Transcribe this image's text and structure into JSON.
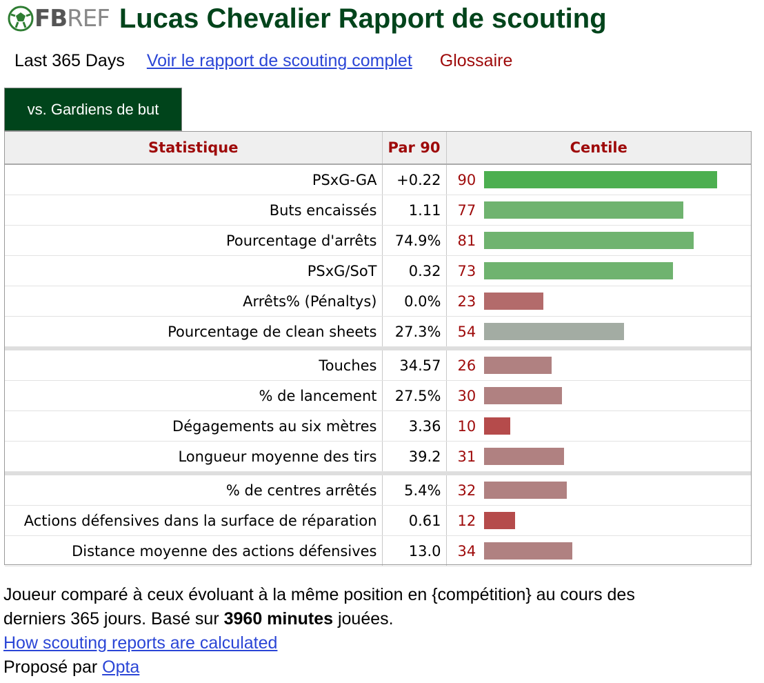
{
  "header": {
    "logo_bold": "FB",
    "logo_light": "REF",
    "title": "Lucas Chevalier Rapport de scouting"
  },
  "subnav": {
    "period": "Last 365 Days",
    "full_report_link": "Voir le rapport de scouting complet",
    "glossary": "Glossaire"
  },
  "tab": {
    "label": "vs. Gardiens de but"
  },
  "table": {
    "headers": [
      "Statistique",
      "Par 90",
      "Centile"
    ],
    "groups": [
      [
        {
          "stat": "PSxG-GA",
          "per90": "+0.22",
          "pct": 90
        },
        {
          "stat": "Buts encaissés",
          "per90": "1.11",
          "pct": 77
        },
        {
          "stat": "Pourcentage d'arrêts",
          "per90": "74.9%",
          "pct": 81
        },
        {
          "stat": "PSxG/SoT",
          "per90": "0.32",
          "pct": 73
        },
        {
          "stat": "Arrêts% (Pénaltys)",
          "per90": "0.0%",
          "pct": 23
        },
        {
          "stat": "Pourcentage de clean sheets",
          "per90": "27.3%",
          "pct": 54
        }
      ],
      [
        {
          "stat": "Touches",
          "per90": "34.57",
          "pct": 26
        },
        {
          "stat": "% de lancement",
          "per90": "27.5%",
          "pct": 30
        },
        {
          "stat": "Dégagements au six mètres",
          "per90": "3.36",
          "pct": 10
        },
        {
          "stat": "Longueur moyenne des tirs",
          "per90": "39.2",
          "pct": 31
        }
      ],
      [
        {
          "stat": "% de centres arrêtés",
          "per90": "5.4%",
          "pct": 32
        },
        {
          "stat": "Actions défensives dans la surface de réparation",
          "per90": "0.61",
          "pct": 12
        },
        {
          "stat": "Distance moyenne des actions défensives",
          "per90": "13.0",
          "pct": 34
        }
      ]
    ]
  },
  "footer": {
    "text_before": "Joueur comparé à ceux évoluant à la même position en {compétition} au cours des derniers 365 jours. Basé sur ",
    "minutes_bold": "3960 minutes",
    "text_after": " jouées.",
    "how_link": "How scouting reports are calculated",
    "provided_by": "Proposé par ",
    "provider_link": "Opta"
  },
  "colors": {
    "title_green": "#00441b",
    "header_red": "#9e0a0a",
    "link_blue": "#2a45d6"
  }
}
